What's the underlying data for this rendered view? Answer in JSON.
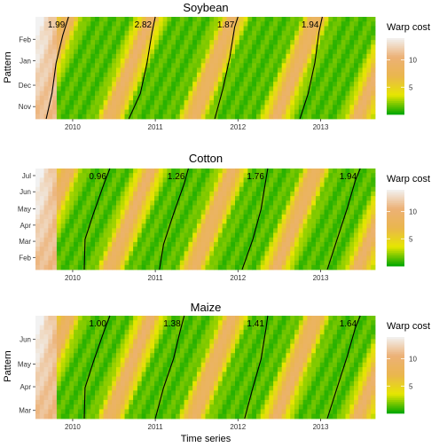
{
  "chart_data": [
    {
      "type": "heatmap",
      "title": "Soybean",
      "xlabel": "",
      "ylabel": "Pattern",
      "x_ticks": [
        "2010",
        "2011",
        "2012",
        "2013"
      ],
      "y_ticks": [
        "Nov",
        "Dec",
        "Jan",
        "Feb"
      ],
      "legend_title": "Warp cost",
      "legend_ticks": [
        5,
        10
      ],
      "color_range": [
        0,
        14
      ],
      "colors": [
        "#00a600",
        "#e6e600",
        "#eab64e",
        "#ecb176",
        "#f2f2f2"
      ],
      "grid": false,
      "legend_position": "right",
      "alignments": [
        {
          "cost": "1.99",
          "path": [
            [
              2009.68,
              0.0
            ],
            [
              2009.75,
              0.25
            ],
            [
              2009.8,
              0.55
            ],
            [
              2009.88,
              0.82
            ],
            [
              2009.95,
              1.0
            ]
          ]
        },
        {
          "cost": "2.82",
          "path": [
            [
              2010.68,
              0.0
            ],
            [
              2010.82,
              0.25
            ],
            [
              2010.9,
              0.55
            ],
            [
              2010.96,
              0.85
            ],
            [
              2011.0,
              1.0
            ]
          ]
        },
        {
          "cost": "1.87",
          "path": [
            [
              2011.72,
              0.0
            ],
            [
              2011.82,
              0.3
            ],
            [
              2011.9,
              0.6
            ],
            [
              2011.96,
              0.9
            ],
            [
              2012.0,
              1.0
            ]
          ]
        },
        {
          "cost": "1.94",
          "path": [
            [
              2012.75,
              0.0
            ],
            [
              2012.85,
              0.25
            ],
            [
              2012.93,
              0.55
            ],
            [
              2012.98,
              0.85
            ],
            [
              2013.02,
              1.0
            ]
          ]
        }
      ]
    },
    {
      "type": "heatmap",
      "title": "Cotton",
      "xlabel": "",
      "ylabel": "",
      "x_ticks": [
        "2010",
        "2011",
        "2012",
        "2013"
      ],
      "y_ticks": [
        "Feb",
        "Mar",
        "Apr",
        "May",
        "Jun",
        "Jul"
      ],
      "legend_title": "Warp cost",
      "legend_ticks": [
        5,
        10
      ],
      "color_range": [
        0,
        14
      ],
      "colors": [
        "#00a600",
        "#e6e600",
        "#eab64e",
        "#ecb176",
        "#f2f2f2"
      ],
      "grid": false,
      "legend_position": "right",
      "alignments": [
        {
          "cost": "0.96",
          "path": [
            [
              2010.14,
              0.0
            ],
            [
              2010.15,
              0.3
            ],
            [
              2010.25,
              0.55
            ],
            [
              2010.38,
              0.85
            ],
            [
              2010.45,
              1.0
            ]
          ]
        },
        {
          "cost": "1.26",
          "path": [
            [
              2011.05,
              0.0
            ],
            [
              2011.1,
              0.25
            ],
            [
              2011.22,
              0.55
            ],
            [
              2011.35,
              0.85
            ],
            [
              2011.4,
              1.0
            ]
          ]
        },
        {
          "cost": "1.76",
          "path": [
            [
              2012.05,
              0.0
            ],
            [
              2012.18,
              0.3
            ],
            [
              2012.28,
              0.6
            ],
            [
              2012.34,
              0.9
            ],
            [
              2012.36,
              1.0
            ]
          ]
        },
        {
          "cost": "1.94",
          "path": [
            [
              2013.08,
              0.0
            ],
            [
              2013.2,
              0.3
            ],
            [
              2013.32,
              0.6
            ],
            [
              2013.42,
              0.88
            ],
            [
              2013.48,
              1.0
            ]
          ]
        }
      ]
    },
    {
      "type": "heatmap",
      "title": "Maize",
      "xlabel": "Time series",
      "ylabel": "Pattern",
      "x_ticks": [
        "2010",
        "2011",
        "2012",
        "2013"
      ],
      "y_ticks": [
        "Mar",
        "Apr",
        "May",
        "Jun"
      ],
      "legend_title": "Warp cost",
      "legend_ticks": [
        5,
        10
      ],
      "color_range": [
        0,
        14
      ],
      "colors": [
        "#00a600",
        "#e6e600",
        "#eab64e",
        "#ecb176",
        "#f2f2f2"
      ],
      "grid": false,
      "legend_position": "right",
      "alignments": [
        {
          "cost": "1.00",
          "path": [
            [
              2010.14,
              0.0
            ],
            [
              2010.15,
              0.3
            ],
            [
              2010.25,
              0.55
            ],
            [
              2010.38,
              0.85
            ],
            [
              2010.45,
              1.0
            ]
          ]
        },
        {
          "cost": "1.38",
          "path": [
            [
              2011.0,
              0.0
            ],
            [
              2011.1,
              0.3
            ],
            [
              2011.22,
              0.58
            ],
            [
              2011.3,
              0.85
            ],
            [
              2011.35,
              1.0
            ]
          ]
        },
        {
          "cost": "1.41",
          "path": [
            [
              2012.08,
              0.0
            ],
            [
              2012.18,
              0.3
            ],
            [
              2012.28,
              0.58
            ],
            [
              2012.34,
              0.88
            ],
            [
              2012.36,
              1.0
            ]
          ]
        },
        {
          "cost": "1.64",
          "path": [
            [
              2013.08,
              0.0
            ],
            [
              2013.2,
              0.3
            ],
            [
              2013.32,
              0.6
            ],
            [
              2013.42,
              0.88
            ],
            [
              2013.48,
              1.0
            ]
          ]
        }
      ]
    }
  ]
}
